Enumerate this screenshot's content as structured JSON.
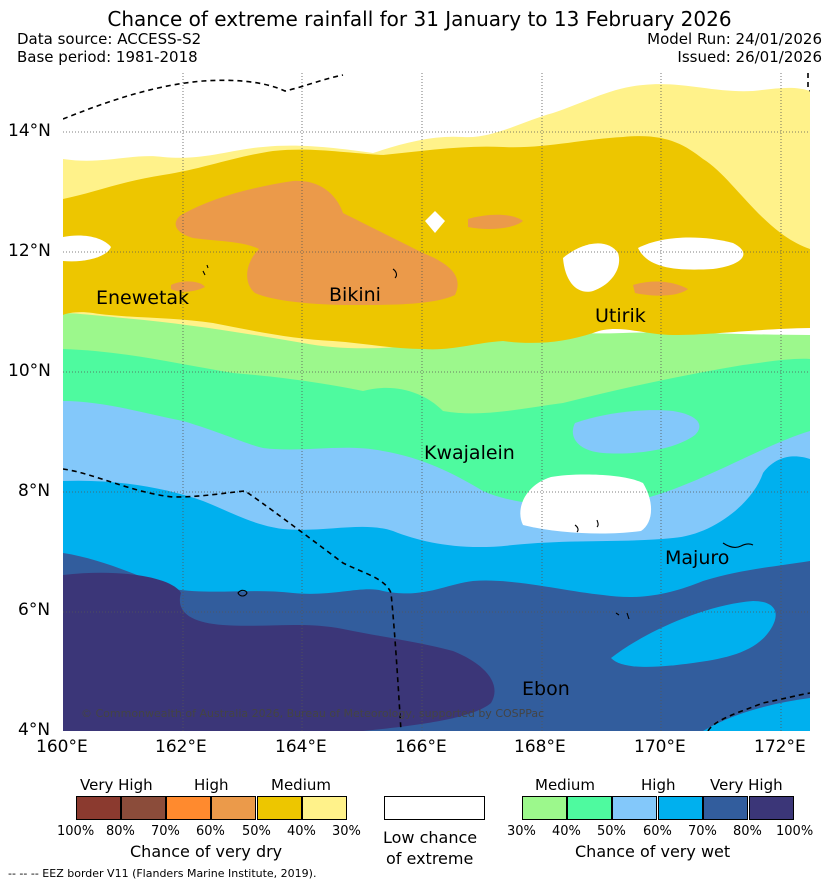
{
  "title": "Chance of extreme rainfall for 31 January to 13 February 2026",
  "header": {
    "data_source": "Data source: ACCESS-S2",
    "base_period": "Base period: 1981-2018",
    "model_run": "Model Run: 24/01/2026",
    "issued": "Issued: 26/01/2026"
  },
  "map": {
    "lat_labels": [
      "14°N",
      "12°N",
      "10°N",
      "8°N",
      "6°N",
      "4°N"
    ],
    "lon_labels": [
      "160°E",
      "162°E",
      "164°E",
      "166°E",
      "168°E",
      "170°E",
      "172°E"
    ],
    "places": {
      "enewetak": "Enewetak",
      "bikini": "Bikini",
      "utirik": "Utirik",
      "kwajalein": "Kwajalein",
      "majuro": "Majuro",
      "ebon": "Ebon"
    },
    "copyright": "© Commonwealth of Australia 2026, Bureau of Meteorology, supported by COSPPac"
  },
  "legend": {
    "dry": {
      "title": "Chance of very dry",
      "headers": [
        "Very High",
        "High",
        "Medium"
      ],
      "ticks": [
        "100%",
        "80%",
        "70%",
        "60%",
        "50%",
        "40%",
        "30%"
      ],
      "colors": [
        "#8b3a2f",
        "#8b4c3a",
        "#ff8a2e",
        "#eb9a4a",
        "#edc600",
        "#fff28a"
      ]
    },
    "neutral": {
      "line1": "Low chance",
      "line2": "of extreme"
    },
    "wet": {
      "title": "Chance of very wet",
      "headers": [
        "Medium",
        "High",
        "Very High"
      ],
      "ticks": [
        "30%",
        "40%",
        "50%",
        "60%",
        "70%",
        "80%",
        "100%"
      ],
      "colors": [
        "#9cf88c",
        "#4efa9f",
        "#83c8fa",
        "#00b0ee",
        "#325d9d",
        "#3b3678"
      ]
    },
    "eez_note": "-- -- -- EEZ border V11 (Flanders Marine Institute, 2019)."
  }
}
